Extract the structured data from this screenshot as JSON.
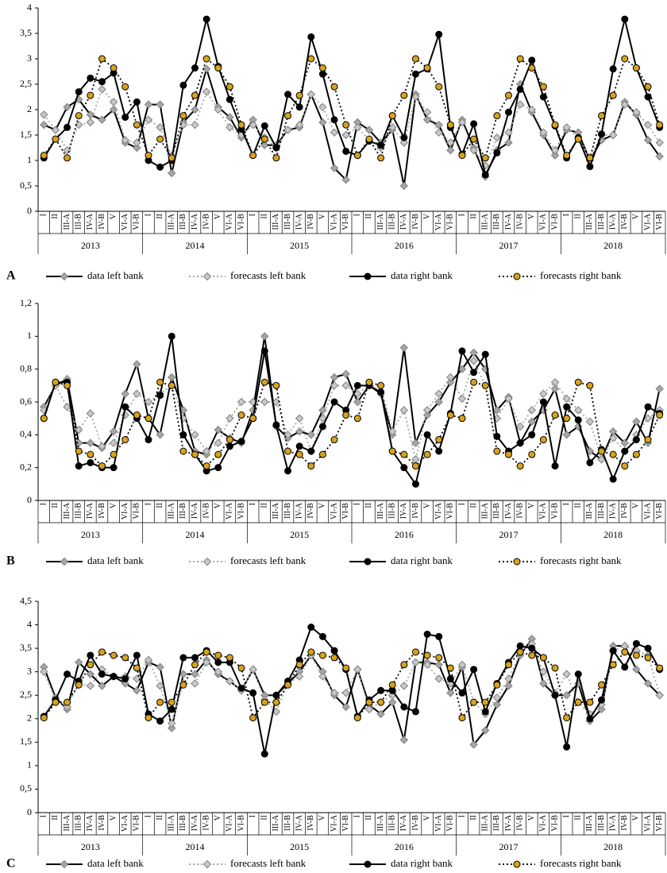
{
  "chart_data": [
    {
      "type": "line",
      "label": "A",
      "categories": [
        "I",
        "II",
        "III-A",
        "III-B",
        "IV-A",
        "IV-B",
        "V",
        "VI-A",
        "VI-B",
        "I",
        "II",
        "III-A",
        "III-B",
        "IV-A",
        "IV-B",
        "V",
        "VI-A",
        "VI-B",
        "I",
        "II",
        "III-A",
        "III-B",
        "IV-A",
        "IV-B",
        "V",
        "VI-A",
        "VI-B",
        "I",
        "II",
        "III-A",
        "III-B",
        "IV-A",
        "IV-B",
        "V",
        "VI-A",
        "VI-B",
        "I",
        "II",
        "III-A",
        "III-B",
        "IV-A",
        "IV-B",
        "V",
        "VI-A",
        "VI-B",
        "I",
        "II",
        "III-A",
        "III-B",
        "IV-A",
        "IV-B",
        "V",
        "VI-A",
        "VI-B"
      ],
      "years": [
        "2013",
        "2014",
        "2015",
        "2016",
        "2017",
        "2018"
      ],
      "ylim": [
        0,
        4
      ],
      "yticks": [
        0,
        {
          "value": 0.5,
          "label": "0,5"
        },
        1,
        {
          "value": 1.5,
          "label": "1,5"
        },
        2,
        {
          "value": 2.5,
          "label": "2,5"
        },
        3,
        {
          "value": 3.5,
          "label": "3,5"
        },
        4
      ],
      "series": [
        {
          "name": "data left bank",
          "color": "#000000",
          "marker": "diamond",
          "marker_color": "#a6a6a6",
          "dash": "solid",
          "values": [
            1.7,
            1.6,
            2.05,
            2.2,
            1.9,
            1.8,
            2.0,
            1.35,
            1.25,
            2.1,
            2.1,
            0.75,
            1.75,
            2.0,
            2.8,
            2.05,
            1.85,
            1.45,
            1.8,
            1.3,
            1.3,
            1.6,
            1.65,
            2.3,
            1.75,
            0.85,
            0.62,
            1.75,
            1.6,
            1.35,
            1.6,
            0.5,
            2.3,
            1.8,
            1.7,
            1.2,
            1.8,
            1.25,
            0.68,
            1.2,
            1.35,
            2.5,
            1.95,
            1.5,
            1.1,
            1.6,
            1.55,
            1.0,
            1.4,
            1.5,
            2.15,
            1.9,
            1.4,
            1.08
          ]
        },
        {
          "name": "forecasts left bank",
          "color": "#a6a6a6",
          "marker": "diamond",
          "marker_color": "#c8c8c8",
          "dash": "dotted",
          "values": [
            1.9,
            1.6,
            1.2,
            1.7,
            1.75,
            2.4,
            2.15,
            1.4,
            1.35,
            1.8,
            1.65,
            1.1,
            1.7,
            1.7,
            2.35,
            2.0,
            1.65,
            1.5,
            1.7,
            1.45,
            1.25,
            1.6,
            1.7,
            2.3,
            2.05,
            1.55,
            1.5,
            1.65,
            1.4,
            1.25,
            1.65,
            1.35,
            2.25,
            1.95,
            1.55,
            1.35,
            1.75,
            1.2,
            0.9,
            1.45,
            1.55,
            2.1,
            2.0,
            1.55,
            1.2,
            1.65,
            1.45,
            1.05,
            1.5,
            1.5,
            2.1,
            1.95,
            1.7,
            1.35
          ]
        },
        {
          "name": "data right bank",
          "color": "#000000",
          "marker": "circle",
          "marker_color": "#000000",
          "dash": "solid",
          "values": [
            1.05,
            1.42,
            1.65,
            2.35,
            2.62,
            2.55,
            2.72,
            1.85,
            2.15,
            1.0,
            0.87,
            1.0,
            2.48,
            2.82,
            3.78,
            2.85,
            2.2,
            1.62,
            1.1,
            1.68,
            1.25,
            2.3,
            2.05,
            3.43,
            2.7,
            1.8,
            1.18,
            1.1,
            1.38,
            1.3,
            1.88,
            1.45,
            2.7,
            2.8,
            3.48,
            1.65,
            1.12,
            1.72,
            0.72,
            1.15,
            1.95,
            2.4,
            2.97,
            2.25,
            1.68,
            1.05,
            1.45,
            0.88,
            1.52,
            2.8,
            3.78,
            2.82,
            2.25,
            1.65
          ]
        },
        {
          "name": "forecasts right bank",
          "color": "#000000",
          "marker": "circle",
          "marker_color": "#d9a21b",
          "dash": "dotted",
          "values": [
            1.1,
            1.42,
            1.05,
            1.88,
            2.28,
            3.0,
            2.82,
            2.45,
            1.7,
            1.1,
            1.42,
            1.05,
            1.88,
            2.28,
            3.0,
            2.82,
            2.45,
            1.7,
            1.1,
            1.42,
            1.05,
            1.88,
            2.28,
            3.0,
            2.82,
            2.45,
            1.7,
            1.1,
            1.42,
            1.05,
            1.88,
            2.28,
            3.0,
            2.82,
            2.45,
            1.7,
            1.1,
            1.42,
            1.05,
            1.88,
            2.28,
            3.0,
            2.82,
            2.45,
            1.7,
            1.1,
            1.42,
            1.05,
            1.88,
            2.28,
            3.0,
            2.82,
            2.45,
            1.7
          ]
        }
      ]
    },
    {
      "type": "line",
      "label": "B",
      "categories": [
        "I",
        "II",
        "III-A",
        "III-B",
        "IV-A",
        "IV-B",
        "V",
        "VI-A",
        "VI-B",
        "I",
        "II",
        "III-A",
        "III-B",
        "IV-A",
        "IV-B",
        "V",
        "VI-A",
        "VI-B",
        "I",
        "II",
        "III-A",
        "III-B",
        "IV-A",
        "IV-B",
        "V",
        "VI-A",
        "VI-B",
        "I",
        "II",
        "III-A",
        "III-B",
        "IV-A",
        "IV-B",
        "V",
        "VI-A",
        "VI-B",
        "I",
        "II",
        "III-A",
        "III-B",
        "IV-A",
        "IV-B",
        "V",
        "VI-A",
        "VI-B",
        "I",
        "II",
        "III-A",
        "III-B",
        "IV-A",
        "IV-B",
        "V",
        "VI-A",
        "VI-B"
      ],
      "years": [
        "2013",
        "2014",
        "2015",
        "2016",
        "2017",
        "2018"
      ],
      "ylim": [
        0,
        1.2
      ],
      "yticks": [
        0,
        {
          "value": 0.2,
          "label": "0,2"
        },
        {
          "value": 0.4,
          "label": "0,4"
        },
        {
          "value": 0.6,
          "label": "0,6"
        },
        {
          "value": 0.8,
          "label": "0,8"
        },
        1,
        {
          "value": 1.2,
          "label": "1,2"
        }
      ],
      "series": [
        {
          "name": "data left bank",
          "color": "#000000",
          "marker": "diamond",
          "marker_color": "#a6a6a6",
          "dash": "solid",
          "values": [
            0.57,
            0.7,
            0.74,
            0.35,
            0.35,
            0.32,
            0.42,
            0.65,
            0.83,
            0.5,
            0.4,
            0.75,
            0.55,
            0.3,
            0.28,
            0.43,
            0.38,
            0.35,
            0.55,
            1.0,
            0.45,
            0.38,
            0.42,
            0.4,
            0.55,
            0.75,
            0.77,
            0.6,
            0.7,
            0.65,
            0.4,
            0.93,
            0.35,
            0.52,
            0.6,
            0.72,
            0.8,
            0.9,
            0.8,
            0.55,
            0.63,
            0.35,
            0.48,
            0.55,
            0.68,
            0.4,
            0.45,
            0.3,
            0.25,
            0.42,
            0.35,
            0.48,
            0.35,
            0.68
          ]
        },
        {
          "name": "forecasts left bank",
          "color": "#a6a6a6",
          "marker": "diamond",
          "marker_color": "#c8c8c8",
          "dash": "dotted",
          "values": [
            0.55,
            0.7,
            0.57,
            0.43,
            0.53,
            0.33,
            0.35,
            0.52,
            0.65,
            0.6,
            0.65,
            0.7,
            0.5,
            0.4,
            0.3,
            0.35,
            0.5,
            0.6,
            0.6,
            0.6,
            0.6,
            0.4,
            0.5,
            0.3,
            0.5,
            0.7,
            0.7,
            0.65,
            0.7,
            0.7,
            0.42,
            0.55,
            0.25,
            0.55,
            0.65,
            0.75,
            0.62,
            0.85,
            0.7,
            0.5,
            0.62,
            0.45,
            0.55,
            0.65,
            0.72,
            0.62,
            0.55,
            0.48,
            0.25,
            0.38,
            0.3,
            0.4,
            0.5,
            0.55
          ]
        },
        {
          "name": "data right bank",
          "color": "#000000",
          "marker": "circle",
          "marker_color": "#000000",
          "dash": "solid",
          "values": [
            0.5,
            0.72,
            0.72,
            0.21,
            0.23,
            0.2,
            0.2,
            0.57,
            0.5,
            0.37,
            0.64,
            1.0,
            0.4,
            0.28,
            0.18,
            0.2,
            0.33,
            0.36,
            0.5,
            0.91,
            0.46,
            0.18,
            0.33,
            0.3,
            0.45,
            0.6,
            0.55,
            0.7,
            0.7,
            0.66,
            0.3,
            0.2,
            0.1,
            0.4,
            0.3,
            0.53,
            0.91,
            0.78,
            0.89,
            0.39,
            0.3,
            0.35,
            0.4,
            0.6,
            0.21,
            0.57,
            0.49,
            0.23,
            0.31,
            0.13,
            0.3,
            0.37,
            0.57,
            0.53
          ]
        },
        {
          "name": "forecasts right bank",
          "color": "#000000",
          "marker": "circle",
          "marker_color": "#d9a21b",
          "dash": "dotted",
          "values": [
            0.5,
            0.72,
            0.7,
            0.3,
            0.28,
            0.21,
            0.28,
            0.37,
            0.52,
            0.5,
            0.72,
            0.7,
            0.3,
            0.28,
            0.21,
            0.28,
            0.37,
            0.52,
            0.5,
            0.72,
            0.7,
            0.3,
            0.28,
            0.21,
            0.28,
            0.37,
            0.52,
            0.5,
            0.72,
            0.7,
            0.3,
            0.28,
            0.21,
            0.28,
            0.37,
            0.52,
            0.5,
            0.72,
            0.7,
            0.3,
            0.28,
            0.21,
            0.28,
            0.37,
            0.52,
            0.5,
            0.72,
            0.7,
            0.3,
            0.28,
            0.21,
            0.28,
            0.37,
            0.52
          ]
        }
      ]
    },
    {
      "type": "line",
      "label": "C",
      "categories": [
        "I",
        "II",
        "III-A",
        "III-B",
        "IV-A",
        "IV-B",
        "V",
        "VI-A",
        "VI-B",
        "I",
        "II",
        "III-A",
        "III-B",
        "IV-A",
        "IV-B",
        "V",
        "VI-A",
        "VI-B",
        "I",
        "II",
        "III-A",
        "III-B",
        "IV-A",
        "IV-B",
        "V",
        "VI-A",
        "VI-B",
        "I",
        "II",
        "III-A",
        "III-B",
        "IV-A",
        "IV-B",
        "V",
        "VI-A",
        "VI-B",
        "I",
        "II",
        "III-A",
        "III-B",
        "IV-A",
        "IV-B",
        "V",
        "VI-A",
        "VI-B",
        "I",
        "II",
        "III-A",
        "III-B",
        "IV-A",
        "IV-B",
        "V",
        "VI-A",
        "VI-B"
      ],
      "years": [
        "2013",
        "2014",
        "2015",
        "2016",
        "2017",
        "2018"
      ],
      "ylim": [
        0,
        4.5
      ],
      "yticks": [
        0,
        {
          "value": 0.5,
          "label": "0,5"
        },
        1,
        {
          "value": 1.5,
          "label": "1,5"
        },
        2,
        {
          "value": 2.5,
          "label": "2,5"
        },
        3,
        {
          "value": 3.5,
          "label": "3,5"
        },
        4,
        {
          "value": 4.5,
          "label": "4,5"
        }
      ],
      "series": [
        {
          "name": "data left bank",
          "color": "#000000",
          "marker": "diamond",
          "marker_color": "#a6a6a6",
          "dash": "solid",
          "values": [
            3.1,
            2.45,
            2.2,
            3.2,
            2.95,
            2.7,
            2.9,
            2.75,
            2.6,
            3.2,
            3.1,
            1.8,
            2.95,
            2.95,
            3.25,
            2.95,
            2.8,
            2.6,
            3.05,
            2.5,
            2.5,
            2.75,
            3.0,
            3.35,
            3.0,
            2.5,
            2.25,
            3.05,
            2.3,
            2.1,
            2.35,
            1.55,
            3.2,
            3.2,
            3.15,
            2.55,
            3.1,
            1.45,
            1.75,
            2.3,
            2.7,
            3.35,
            3.7,
            2.75,
            2.5,
            2.5,
            2.75,
            1.95,
            2.2,
            3.55,
            3.55,
            3.05,
            2.75,
            2.5
          ]
        },
        {
          "name": "forecasts left bank",
          "color": "#a6a6a6",
          "marker": "diamond",
          "marker_color": "#c8c8c8",
          "dash": "dotted",
          "values": [
            3.0,
            2.4,
            2.25,
            2.75,
            2.7,
            3.05,
            2.9,
            2.9,
            2.85,
            3.25,
            2.7,
            1.9,
            2.75,
            2.75,
            3.2,
            3.0,
            2.8,
            2.6,
            3.05,
            2.4,
            2.15,
            2.75,
            2.9,
            3.35,
            2.9,
            2.55,
            2.55,
            3.05,
            2.2,
            2.35,
            2.5,
            2.7,
            3.2,
            3.15,
            2.85,
            2.75,
            3.15,
            2.35,
            2.1,
            2.45,
            2.85,
            3.4,
            3.6,
            3.0,
            2.55,
            2.95,
            2.35,
            2.1,
            2.3,
            3.45,
            3.55,
            3.45,
            3.35,
            2.5
          ]
        },
        {
          "name": "data right bank",
          "color": "#000000",
          "marker": "circle",
          "marker_color": "#000000",
          "dash": "solid",
          "values": [
            2.05,
            2.4,
            2.95,
            2.8,
            3.35,
            2.95,
            2.9,
            2.85,
            3.35,
            2.1,
            1.95,
            2.2,
            3.3,
            3.3,
            3.45,
            3.2,
            3.2,
            2.65,
            2.55,
            1.25,
            2.5,
            2.8,
            3.25,
            3.95,
            3.75,
            3.45,
            3.05,
            2.05,
            2.4,
            2.6,
            2.6,
            2.25,
            2.15,
            3.8,
            3.75,
            2.85,
            2.55,
            3.05,
            2.15,
            2.75,
            3.2,
            3.55,
            3.5,
            3.3,
            2.5,
            1.4,
            2.95,
            2.0,
            2.4,
            3.45,
            3.1,
            3.6,
            3.5,
            3.05
          ]
        },
        {
          "name": "forecasts right bank",
          "color": "#000000",
          "marker": "circle",
          "marker_color": "#d9a21b",
          "dash": "dotted",
          "values": [
            2.02,
            2.35,
            2.35,
            2.72,
            3.15,
            3.42,
            3.35,
            3.3,
            3.08,
            2.02,
            2.35,
            2.35,
            2.72,
            3.15,
            3.42,
            3.35,
            3.3,
            3.08,
            2.02,
            2.35,
            2.35,
            2.72,
            3.15,
            3.42,
            3.35,
            3.3,
            3.08,
            2.02,
            2.35,
            2.35,
            2.72,
            3.15,
            3.42,
            3.35,
            3.3,
            3.08,
            2.02,
            2.35,
            2.35,
            2.72,
            3.15,
            3.42,
            3.35,
            3.3,
            3.08,
            2.02,
            2.35,
            2.35,
            2.72,
            3.15,
            3.42,
            3.35,
            3.3,
            3.08
          ]
        }
      ]
    }
  ]
}
